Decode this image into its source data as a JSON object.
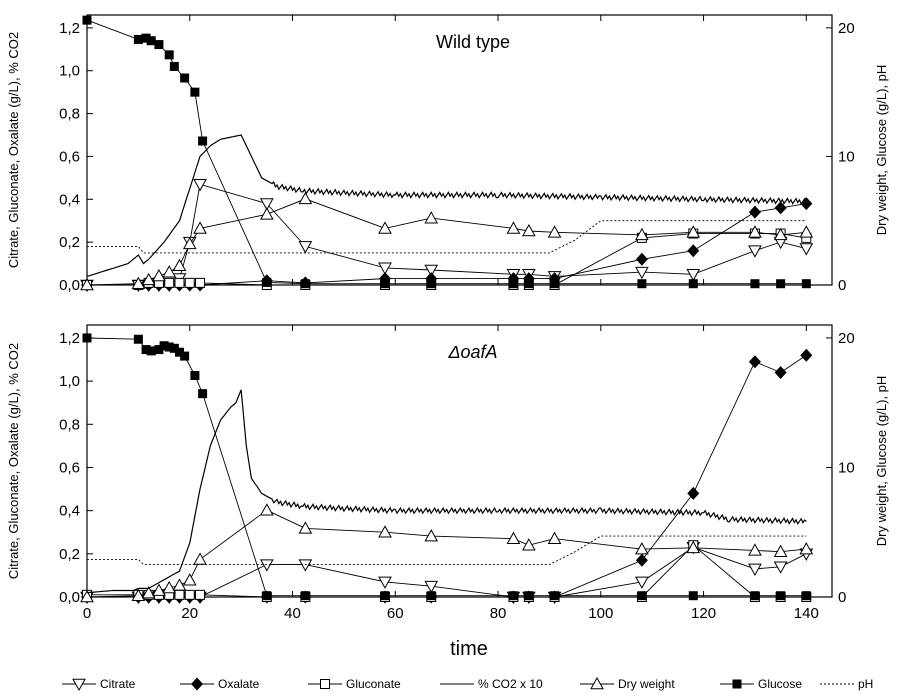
{
  "chart_data": {
    "type": "line",
    "xlabel": "time",
    "x_ticks": [
      "0",
      "20",
      "40",
      "60",
      "80",
      "100",
      "120",
      "140"
    ],
    "xlim": [
      0,
      145
    ],
    "y_left_label": "Citrate, Gluconate, Oxalate (g/L), % CO2",
    "y_left_ticks": [
      "0,0",
      "0,2",
      "0,4",
      "0,6",
      "0,8",
      "1,0",
      "1,2"
    ],
    "y_left_lim": [
      0,
      1.26
    ],
    "y_right_label": "Dry weight, Glucose (g/L), pH",
    "y_right_ticks": [
      "0",
      "10",
      "20"
    ],
    "y_right_lim": [
      0,
      21
    ],
    "legend": [
      {
        "name": "Citrate",
        "marker": "triangle-down-open",
        "dash": "solid"
      },
      {
        "name": "Oxalate",
        "marker": "diamond-filled",
        "dash": "solid"
      },
      {
        "name": "Gluconate",
        "marker": "square-open",
        "dash": "solid"
      },
      {
        "name": "% CO2 x 10",
        "marker": "none",
        "dash": "solid"
      },
      {
        "name": "Dry weight",
        "marker": "triangle-up-open",
        "dash": "solid"
      },
      {
        "name": "Glucose",
        "marker": "square-filled",
        "dash": "solid"
      },
      {
        "name": "pH",
        "marker": "none",
        "dash": "dotted"
      }
    ],
    "legend_position": "bottom",
    "panels": [
      {
        "title": "Wild type",
        "series": [
          {
            "name": "Citrate",
            "axis": "left",
            "x": [
              0,
              10,
              12,
              14,
              16,
              18,
              20,
              22,
              35,
              42.5,
              58,
              67,
              83,
              86,
              91,
              108,
              118,
              130,
              135,
              140
            ],
            "y": [
              0.0,
              0.0,
              0.0,
              0.0,
              0.0,
              0.03,
              0.2,
              0.47,
              0.38,
              0.18,
              0.08,
              0.07,
              0.05,
              0.05,
              0.04,
              0.06,
              0.05,
              0.16,
              0.2,
              0.17
            ]
          },
          {
            "name": "Oxalate",
            "axis": "left",
            "x": [
              0,
              10,
              12,
              14,
              16,
              18,
              20,
              22,
              35,
              42.5,
              58,
              67,
              83,
              86,
              91,
              108,
              118,
              130,
              135,
              140
            ],
            "y": [
              0,
              0,
              0,
              0,
              0,
              0,
              0,
              0,
              0.02,
              0.01,
              0.03,
              0.03,
              0.03,
              0.03,
              0.03,
              0.12,
              0.16,
              0.34,
              0.36,
              0.38
            ]
          },
          {
            "name": "Gluconate",
            "axis": "left",
            "x": [
              0,
              10,
              12,
              14,
              16,
              18,
              20,
              22,
              35,
              42.5,
              58,
              67,
              83,
              86,
              91,
              108,
              118,
              130,
              135,
              140
            ],
            "y": [
              0,
              0,
              0.01,
              0.01,
              0.01,
              0.01,
              0.01,
              0.01,
              0,
              0,
              0,
              0,
              0,
              0,
              0,
              0.22,
              0.24,
              0.24,
              0.24,
              0.22
            ]
          },
          {
            "name": "Dry weight",
            "axis": "right",
            "x": [
              0,
              10,
              12,
              14,
              16,
              18,
              20,
              22,
              35,
              42.5,
              58,
              67,
              83,
              86,
              91,
              108,
              118,
              130,
              135,
              140
            ],
            "y": [
              0,
              0.1,
              0.4,
              0.7,
              1.0,
              1.5,
              3.2,
              4.4,
              5.5,
              6.7,
              4.4,
              5.2,
              4.4,
              4.2,
              4.1,
              3.9,
              4.1,
              4.1,
              3.9,
              4.1
            ]
          },
          {
            "name": "Glucose",
            "axis": "right",
            "x": [
              0,
              10,
              11.5,
              12.5,
              14,
              16,
              17,
              19,
              21,
              22.5,
              35,
              42.5,
              58,
              67,
              83,
              86,
              91,
              108,
              118,
              130,
              135,
              140
            ],
            "y": [
              20.6,
              19.1,
              19.2,
              19.0,
              18.7,
              17.9,
              17.0,
              16.1,
              15.0,
              11.2,
              0.2,
              0.1,
              0.1,
              0.1,
              0.1,
              0.1,
              0.1,
              0.1,
              0.1,
              0.1,
              0.1,
              0.1
            ]
          },
          {
            "name": "% CO2 x 10",
            "axis": "left",
            "x": [
              0,
              4,
              8,
              10,
              11,
              12,
              15,
              18,
              20,
              22,
              24,
              26,
              28,
              30,
              32,
              34,
              37,
              42,
              50,
              60,
              80,
              100,
              120,
              140
            ],
            "y": [
              0.04,
              0.07,
              0.1,
              0.14,
              0.1,
              0.12,
              0.2,
              0.3,
              0.45,
              0.6,
              0.65,
              0.68,
              0.69,
              0.7,
              0.6,
              0.5,
              0.46,
              0.44,
              0.43,
              0.42,
              0.42,
              0.41,
              0.4,
              0.39
            ]
          },
          {
            "name": "pH",
            "axis": "right",
            "x": [
              0,
              10,
              11,
              20,
              40,
              80,
              90,
              95,
              100,
              140
            ],
            "y": [
              3.0,
              3.0,
              2.5,
              2.5,
              2.5,
              2.5,
              2.5,
              3.5,
              5.0,
              5.0
            ]
          }
        ]
      },
      {
        "title": "ΔoafA",
        "series": [
          {
            "name": "Citrate",
            "axis": "left",
            "x": [
              0,
              10,
              12,
              14,
              16,
              18,
              20,
              22,
              35,
              42.5,
              58,
              67,
              83,
              86,
              91,
              108,
              118,
              130,
              135,
              140
            ],
            "y": [
              0.0,
              0.0,
              0.0,
              0.0,
              0.0,
              0.0,
              0.0,
              0.0,
              0.15,
              0.15,
              0.07,
              0.05,
              0.0,
              0.0,
              0.0,
              0.07,
              0.23,
              0.13,
              0.14,
              0.2
            ]
          },
          {
            "name": "Oxalate",
            "axis": "left",
            "x": [
              0,
              10,
              12,
              14,
              16,
              18,
              20,
              22,
              35,
              42.5,
              58,
              67,
              83,
              86,
              91,
              108,
              118,
              130,
              135,
              140
            ],
            "y": [
              0,
              0,
              0,
              0,
              0,
              0,
              0,
              0,
              0,
              0,
              0,
              0,
              0,
              0,
              0,
              0.17,
              0.48,
              1.09,
              1.04,
              1.12
            ]
          },
          {
            "name": "Gluconate",
            "axis": "left",
            "x": [
              0,
              10,
              12,
              14,
              16,
              18,
              20,
              22,
              35,
              42.5,
              58,
              67,
              83,
              86,
              91,
              108,
              118,
              130,
              135,
              140
            ],
            "y": [
              0.01,
              0.01,
              0.01,
              0.01,
              0.01,
              0.01,
              0.01,
              0.01,
              0,
              0,
              0,
              0,
              0,
              0,
              0,
              0,
              0.24,
              0,
              0,
              0
            ]
          },
          {
            "name": "Dry weight",
            "axis": "right",
            "x": [
              0,
              10,
              12,
              14,
              16,
              18,
              20,
              22,
              35,
              42.5,
              58,
              67,
              83,
              86,
              91,
              108,
              118,
              130,
              135,
              140
            ],
            "y": [
              0,
              0.1,
              0.3,
              0.5,
              0.7,
              0.9,
              1.3,
              2.9,
              6.7,
              5.3,
              5.0,
              4.7,
              4.5,
              4.0,
              4.5,
              3.7,
              3.8,
              3.6,
              3.5,
              3.7
            ]
          },
          {
            "name": "Glucose",
            "axis": "right",
            "x": [
              0,
              10,
              11.5,
              12.5,
              14,
              15,
              16,
              17,
              18,
              19,
              21,
              22.5,
              35,
              42.5,
              58,
              67,
              83,
              86,
              91,
              108,
              118,
              130,
              135,
              140
            ],
            "y": [
              20.0,
              19.9,
              19.1,
              19.0,
              19.1,
              19.4,
              19.3,
              19.2,
              18.9,
              18.6,
              17.1,
              15.7,
              0.1,
              0.1,
              0.1,
              0.1,
              0.1,
              0.1,
              0.1,
              0.1,
              0.1,
              0.1,
              0.1,
              0.1
            ]
          },
          {
            "name": "% CO2 x 10",
            "axis": "left",
            "x": [
              0,
              5,
              9,
              10,
              11,
              12,
              15,
              18,
              20,
              22,
              24,
              26,
              28,
              29,
              30,
              31,
              32,
              34,
              37,
              42,
              50,
              60,
              80,
              100,
              120,
              125,
              140
            ],
            "y": [
              0.02,
              0.03,
              0.03,
              0.04,
              0.04,
              0.04,
              0.08,
              0.12,
              0.25,
              0.5,
              0.7,
              0.82,
              0.88,
              0.9,
              0.96,
              0.7,
              0.55,
              0.48,
              0.44,
              0.42,
              0.41,
              0.4,
              0.4,
              0.4,
              0.39,
              0.36,
              0.35
            ]
          },
          {
            "name": "pH",
            "axis": "right",
            "x": [
              0,
              10,
              11,
              20,
              40,
              80,
              90,
              95,
              100,
              140
            ],
            "y": [
              2.9,
              2.9,
              2.5,
              2.5,
              2.5,
              2.5,
              2.5,
              3.5,
              4.7,
              4.7
            ]
          }
        ]
      }
    ]
  }
}
